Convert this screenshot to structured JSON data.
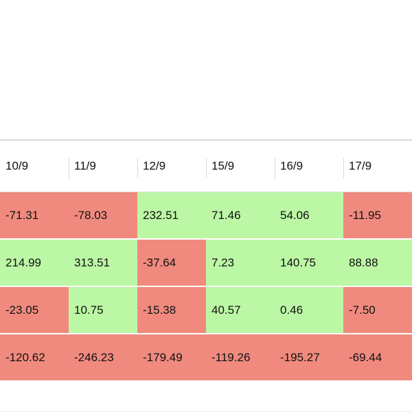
{
  "table": {
    "headers": [
      "10/9",
      "11/9",
      "12/9",
      "15/9",
      "16/9",
      "17/9"
    ],
    "rows": [
      [
        "-71.31",
        "-78.03",
        "232.51",
        "71.46",
        "54.06",
        "-11.95"
      ],
      [
        "214.99",
        "313.51",
        "-37.64",
        "7.23",
        "140.75",
        "88.88"
      ],
      [
        "-23.05",
        "10.75",
        "-15.38",
        "40.57",
        "0.46",
        "-7.50"
      ],
      [
        "-120.62",
        "-246.23",
        "-179.49",
        "-119.26",
        "-195.27",
        "-69.44"
      ]
    ]
  },
  "colors": {
    "negative": "#f08a7e",
    "positive": "#bcf7a5",
    "header_bg": "#ffffff",
    "text": "#111111"
  }
}
